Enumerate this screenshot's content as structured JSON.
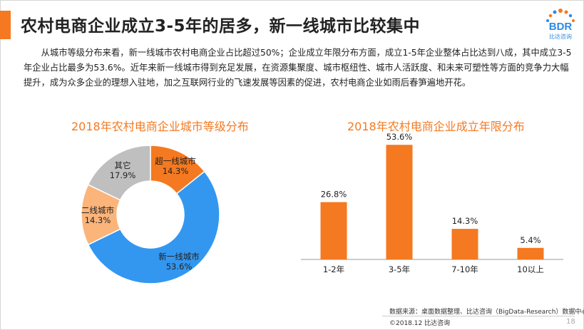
{
  "page": {
    "title": "农村电商企业成立3-5年的居多，新一线城市比较集中",
    "logo_text": "BDR",
    "logo_sub": "比达咨询",
    "paragraph": "从城市等级分布来看，新一线城市农村电商企业占比超过50%；企业成立年限分布方面，成立1-5年企业整体占比达到八成，其中成立3-5年企业占比最多为53.6%。近年来新一线城市得到充足发展，在资源集聚度、城市枢纽性、城市人活跃度、和未来可塑性等方面的竞争力大幅提升，成为众多企业的理想入驻地，加之互联网行业的飞速发展等因素的促进，农村电商企业如雨后春笋遍地开花。",
    "source": "数据来源：桌面数据整理、比达咨询（BigData-Research）数据中心",
    "copyright": "©2018.12 比达咨询",
    "page_number": "18"
  },
  "colors": {
    "accent": "#f47920",
    "blue": "#3397f0",
    "light_orange": "#fbb47a",
    "gray": "#bfbfbf"
  },
  "chart_data": [
    {
      "type": "pie",
      "donut": true,
      "title": "2018年农村电商企业城市等级分布",
      "slices": [
        {
          "label": "超一线城市",
          "value": 14.3,
          "value_label": "14.3%",
          "color": "#f47920"
        },
        {
          "label": "新一线城市",
          "value": 53.6,
          "value_label": "53.6%",
          "color": "#3397f0"
        },
        {
          "label": "二线城市",
          "value": 14.3,
          "value_label": "14.3%",
          "color": "#fbb47a"
        },
        {
          "label": "其它",
          "value": 17.9,
          "value_label": "17.9%",
          "color": "#bfbfbf"
        }
      ]
    },
    {
      "type": "bar",
      "title": "2018年农村电商企业成立年限分布",
      "categories": [
        "1-2年",
        "3-5年",
        "7-10年",
        "10以上"
      ],
      "values": [
        26.8,
        53.6,
        14.3,
        5.4
      ],
      "value_labels": [
        "26.8%",
        "53.6%",
        "14.3%",
        "5.4%"
      ],
      "ylim": [
        0,
        60
      ],
      "color": "#f47920",
      "grid": false
    }
  ]
}
